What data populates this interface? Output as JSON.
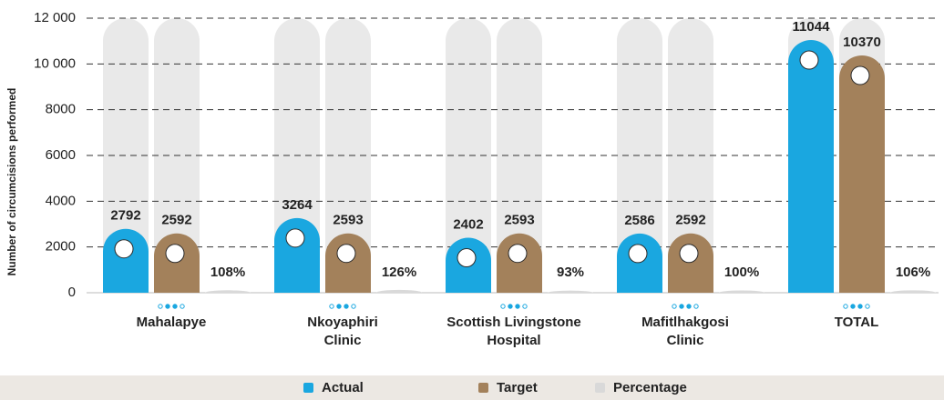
{
  "chart_data": {
    "type": "bar",
    "y_label": "Number of circumcisions performed",
    "categories": [
      "Mahalapye",
      "Nkoyaphiri\nClinic",
      "Scottish Livingstone\nHospital",
      "Mafitlhakgosi\nClinic",
      "TOTAL"
    ],
    "series": [
      {
        "name": "Actual",
        "color": "#1aa7e0",
        "values": [
          2792,
          3264,
          2402,
          2586,
          11044
        ]
      },
      {
        "name": "Target",
        "color": "#a3815b",
        "values": [
          2592,
          2593,
          2593,
          2592,
          10370
        ]
      },
      {
        "name": "Percentage",
        "color": "#d9d9d9",
        "values": [
          108,
          126,
          93,
          100,
          106
        ],
        "value_labels": [
          "108%",
          "126%",
          "93%",
          "100%",
          "106%"
        ]
      }
    ],
    "ylim": [
      0,
      12000
    ],
    "yticks": [
      0,
      2000,
      4000,
      6000,
      8000,
      {
        "value": 10000,
        "label": "10 000"
      },
      {
        "value": 12000,
        "label": "12 000"
      }
    ],
    "grid": true
  }
}
